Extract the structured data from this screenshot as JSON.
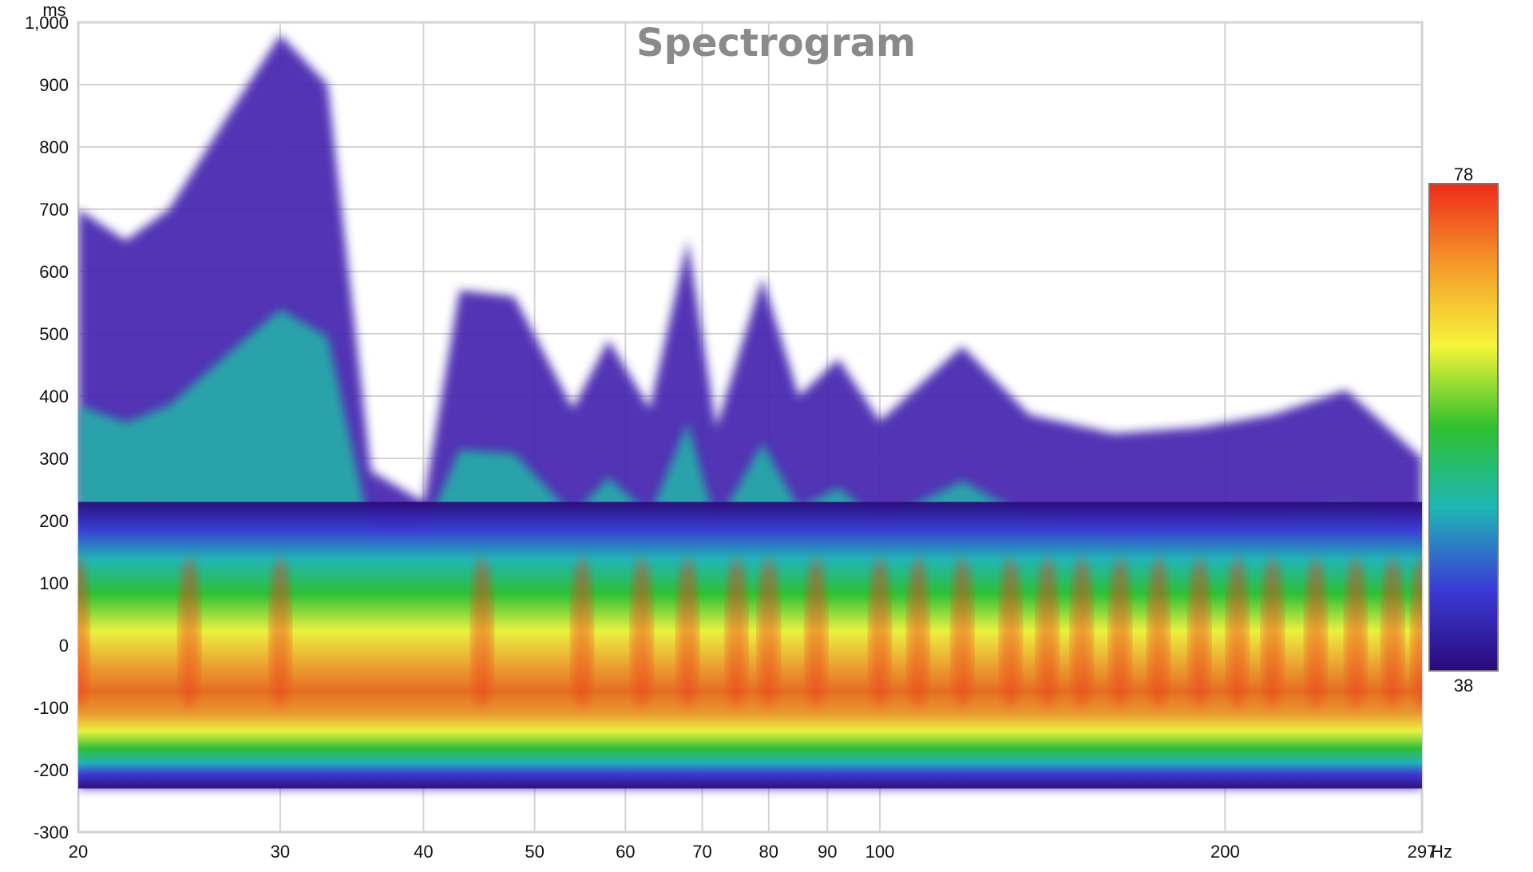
{
  "chart_data": {
    "type": "heatmap",
    "title": "Spectrogram",
    "xlabel": "Hz",
    "ylabel": "ms",
    "x_scale": "log",
    "xlim": [
      20,
      297
    ],
    "ylim": [
      -300,
      1000
    ],
    "x_ticks": [
      {
        "value": 20,
        "label": "20"
      },
      {
        "value": 30,
        "label": "30"
      },
      {
        "value": 40,
        "label": "40"
      },
      {
        "value": 50,
        "label": "50"
      },
      {
        "value": 60,
        "label": "60"
      },
      {
        "value": 70,
        "label": "70"
      },
      {
        "value": 80,
        "label": "80"
      },
      {
        "value": 90,
        "label": "90"
      },
      {
        "value": 100,
        "label": "100"
      },
      {
        "value": 200,
        "label": "200"
      },
      {
        "value": 297,
        "label": "297"
      }
    ],
    "y_ticks": [
      {
        "value": 1000,
        "label": "1,000"
      },
      {
        "value": 900,
        "label": "900"
      },
      {
        "value": 800,
        "label": "800"
      },
      {
        "value": 700,
        "label": "700"
      },
      {
        "value": 600,
        "label": "600"
      },
      {
        "value": 500,
        "label": "500"
      },
      {
        "value": 400,
        "label": "400"
      },
      {
        "value": 300,
        "label": "300"
      },
      {
        "value": 200,
        "label": "200"
      },
      {
        "value": 100,
        "label": "100"
      },
      {
        "value": 0,
        "label": "0"
      },
      {
        "value": -100,
        "label": "-100"
      },
      {
        "value": -200,
        "label": "-200"
      },
      {
        "value": -300,
        "label": "-300"
      }
    ],
    "colorbar": {
      "min": 38,
      "max": 78,
      "max_label": "78",
      "min_label": "38"
    },
    "grid": true,
    "decay_profile": [
      {
        "freq": 20,
        "decay_ms": 700
      },
      {
        "freq": 22,
        "decay_ms": 650
      },
      {
        "freq": 24,
        "decay_ms": 700
      },
      {
        "freq": 27,
        "decay_ms": 850
      },
      {
        "freq": 30,
        "decay_ms": 980
      },
      {
        "freq": 33,
        "decay_ms": 900
      },
      {
        "freq": 36,
        "decay_ms": 280
      },
      {
        "freq": 40,
        "decay_ms": 230
      },
      {
        "freq": 43,
        "decay_ms": 570
      },
      {
        "freq": 48,
        "decay_ms": 560
      },
      {
        "freq": 54,
        "decay_ms": 380
      },
      {
        "freq": 58,
        "decay_ms": 490
      },
      {
        "freq": 63,
        "decay_ms": 380
      },
      {
        "freq": 68,
        "decay_ms": 650
      },
      {
        "freq": 72,
        "decay_ms": 350
      },
      {
        "freq": 79,
        "decay_ms": 590
      },
      {
        "freq": 85,
        "decay_ms": 400
      },
      {
        "freq": 92,
        "decay_ms": 460
      },
      {
        "freq": 100,
        "decay_ms": 360
      },
      {
        "freq": 118,
        "decay_ms": 480
      },
      {
        "freq": 135,
        "decay_ms": 370
      },
      {
        "freq": 160,
        "decay_ms": 340
      },
      {
        "freq": 190,
        "decay_ms": 350
      },
      {
        "freq": 220,
        "decay_ms": 370
      },
      {
        "freq": 255,
        "decay_ms": 410
      },
      {
        "freq": 297,
        "decay_ms": 300
      }
    ],
    "peak_frequencies": [
      20,
      25,
      30,
      45,
      55,
      62,
      68,
      75,
      80,
      88,
      100,
      108,
      118,
      130,
      140,
      150,
      162,
      175,
      190,
      205,
      220,
      240,
      260,
      280,
      297
    ],
    "colors": [
      "#2a0a7a",
      "#3b3bd6",
      "#1fb6b6",
      "#2ec12e",
      "#f5f53a",
      "#f59a2a",
      "#ee2a1a"
    ]
  }
}
